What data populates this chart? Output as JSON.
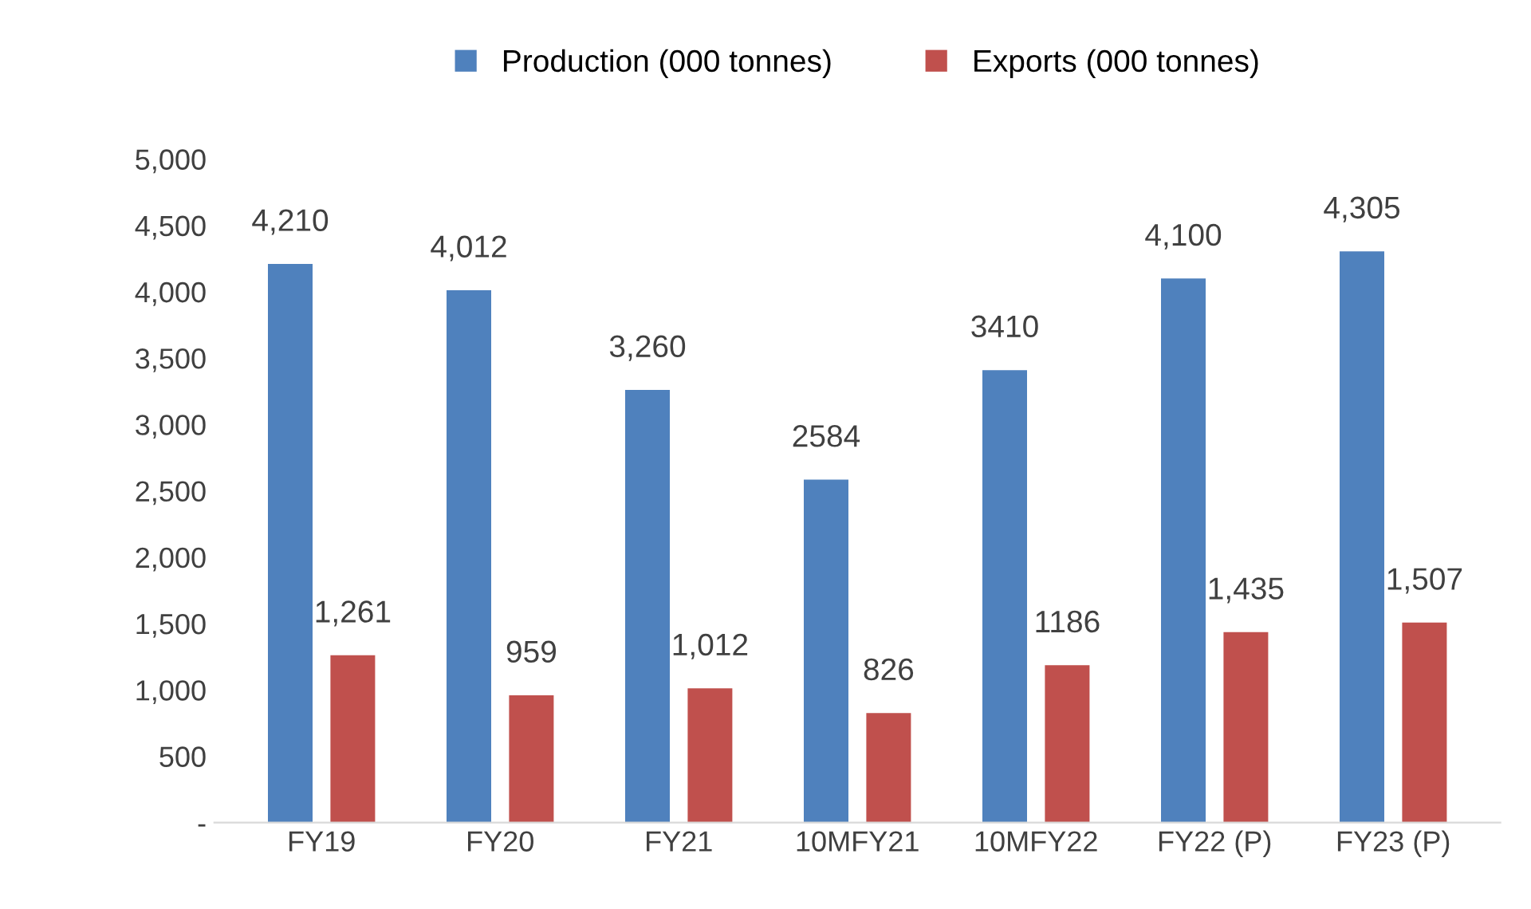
{
  "chart_data": {
    "type": "bar",
    "categories": [
      "FY19",
      "FY20",
      "FY21",
      "10MFY21",
      "10MFY22",
      "FY22 (P)",
      "FY23 (P)"
    ],
    "series": [
      {
        "name": "Production (000 tonnes)",
        "color": "#4f81bd",
        "values": [
          4210,
          4012,
          3260,
          2584,
          3410,
          4100,
          4305
        ],
        "value_labels": [
          "4,210",
          "4,012",
          "3,260",
          "2584",
          "3410",
          "4,100",
          "4,305"
        ]
      },
      {
        "name": "Exports (000 tonnes)",
        "color": "#c0504d",
        "values": [
          1261,
          959,
          1012,
          826,
          1186,
          1435,
          1507
        ],
        "value_labels": [
          "1,261",
          "959",
          "1,012",
          "826",
          "1186",
          "1,435",
          "1,507"
        ]
      }
    ],
    "ylim": [
      0,
      5000
    ],
    "yticks": [
      {
        "value": 0,
        "label": "-"
      },
      {
        "value": 500,
        "label": "500"
      },
      {
        "value": 1000,
        "label": "1,000"
      },
      {
        "value": 1500,
        "label": "1,500"
      },
      {
        "value": 2000,
        "label": "2,000"
      },
      {
        "value": 2500,
        "label": "2,500"
      },
      {
        "value": 3000,
        "label": "3,000"
      },
      {
        "value": 3500,
        "label": "3,500"
      },
      {
        "value": 4000,
        "label": "4,000"
      },
      {
        "value": 4500,
        "label": "4,500"
      },
      {
        "value": 5000,
        "label": "5,000"
      }
    ],
    "grid": false,
    "legend": "top"
  }
}
